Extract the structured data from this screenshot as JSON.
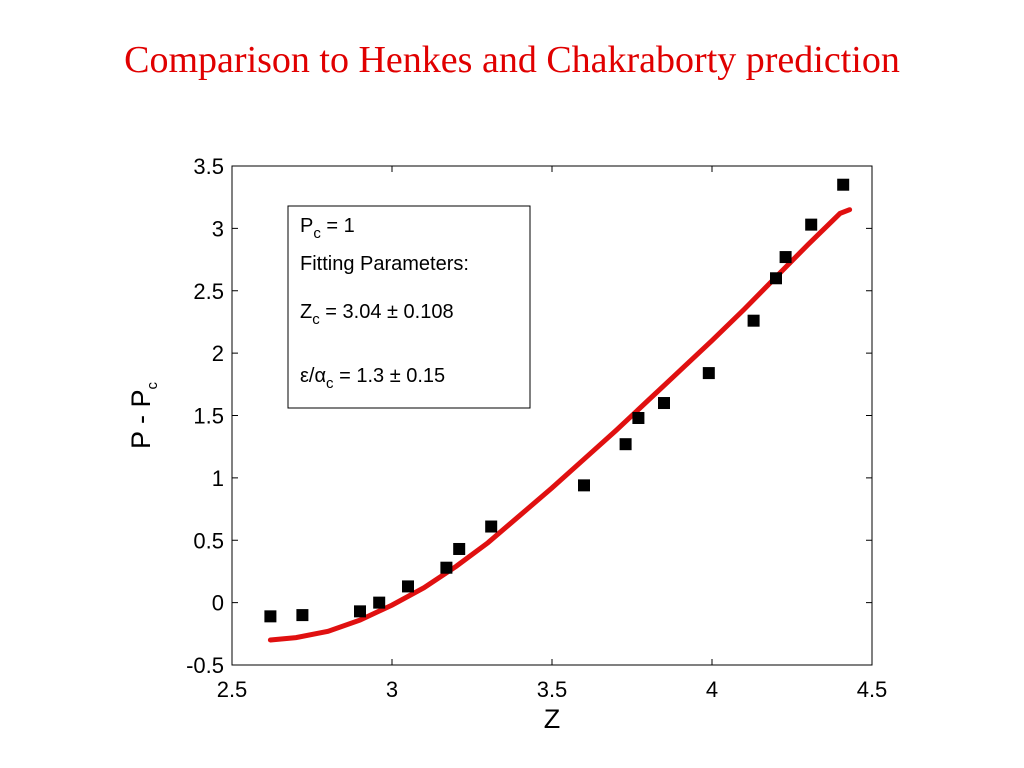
{
  "slide": {
    "title": "Comparison to Henkes and Chakraborty prediction"
  },
  "colors": {
    "title": "#e00000",
    "fit_line": "#e01010",
    "markers": "#000000"
  },
  "chart_data": {
    "type": "scatter",
    "xlabel": "Z",
    "ylabel": {
      "main": "P - P",
      "sub": "c"
    },
    "xlim": [
      2.5,
      4.5
    ],
    "ylim": [
      -0.5,
      3.5
    ],
    "xticks": [
      "2.5",
      "3",
      "3.5",
      "4",
      "4.5"
    ],
    "yticks": [
      "-0.5",
      "0",
      "0.5",
      "1",
      "1.5",
      "2",
      "2.5",
      "3",
      "3.5"
    ],
    "grid": false,
    "series": [
      {
        "kind": "markers",
        "marker": "square",
        "points": [
          [
            2.62,
            -0.11
          ],
          [
            2.72,
            -0.1
          ],
          [
            2.9,
            -0.07
          ],
          [
            2.96,
            0.0
          ],
          [
            3.05,
            0.13
          ],
          [
            3.17,
            0.28
          ],
          [
            3.21,
            0.43
          ],
          [
            3.31,
            0.61
          ],
          [
            3.6,
            0.94
          ],
          [
            3.73,
            1.27
          ],
          [
            3.77,
            1.48
          ],
          [
            3.85,
            1.6
          ],
          [
            3.99,
            1.84
          ],
          [
            4.13,
            2.26
          ],
          [
            4.2,
            2.6
          ],
          [
            4.23,
            2.77
          ],
          [
            4.31,
            3.03
          ],
          [
            4.41,
            3.35
          ]
        ]
      },
      {
        "kind": "line",
        "points": [
          [
            2.62,
            -0.3
          ],
          [
            2.7,
            -0.28
          ],
          [
            2.8,
            -0.23
          ],
          [
            2.9,
            -0.14
          ],
          [
            3.0,
            -0.02
          ],
          [
            3.1,
            0.12
          ],
          [
            3.2,
            0.29
          ],
          [
            3.3,
            0.48
          ],
          [
            3.4,
            0.7
          ],
          [
            3.5,
            0.92
          ],
          [
            3.6,
            1.15
          ],
          [
            3.7,
            1.38
          ],
          [
            3.8,
            1.62
          ],
          [
            3.9,
            1.86
          ],
          [
            4.0,
            2.1
          ],
          [
            4.1,
            2.35
          ],
          [
            4.2,
            2.61
          ],
          [
            4.3,
            2.87
          ],
          [
            4.4,
            3.12
          ],
          [
            4.43,
            3.15
          ]
        ]
      }
    ],
    "annotation": {
      "line1": {
        "main": "P",
        "sub": "c",
        "rest": " = 1"
      },
      "line2": "Fitting Parameters:",
      "line3": {
        "main": "Z",
        "sub": "c",
        "rest": " = 3.04 ± 0.108"
      },
      "line4": {
        "main": "ε/α",
        "sub": "c",
        "rest": " = 1.3 ± 0.15"
      }
    }
  }
}
